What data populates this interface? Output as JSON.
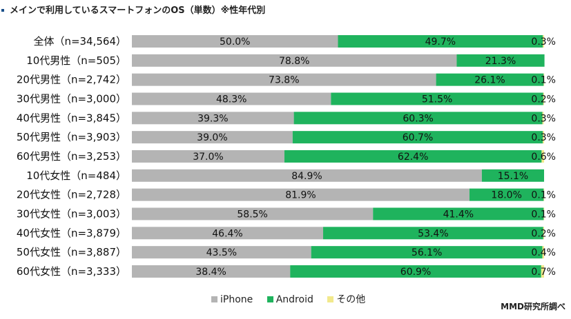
{
  "chart_data": {
    "type": "bar",
    "stacked": true,
    "orientation": "horizontal",
    "title": "メインで利用しているスマートフォンのOS（単数）※性年代別",
    "categories": [
      "全体（n=34,564）",
      "10代男性（n=505）",
      "20代男性（n=2,742）",
      "30代男性（n=3,000）",
      "40代男性（n=3,845）",
      "50代男性（n=3,903）",
      "60代男性（n=3,253）",
      "10代女性（n=484）",
      "20代女性（n=2,728）",
      "30代女性（n=3,003）",
      "40代女性（n=3,879）",
      "50代女性（n=3,887）",
      "60代女性（n=3,333）"
    ],
    "series": [
      {
        "name": "iPhone",
        "color": "#b4b4b4",
        "values": [
          50.0,
          78.8,
          73.8,
          48.3,
          39.3,
          39.0,
          37.0,
          84.9,
          81.9,
          58.5,
          46.4,
          43.5,
          38.4
        ],
        "labels": [
          "50.0%",
          "78.8%",
          "73.8%",
          "48.3%",
          "39.3%",
          "39.0%",
          "37.0%",
          "84.9%",
          "81.9%",
          "58.5%",
          "46.4%",
          "43.5%",
          "38.4%"
        ]
      },
      {
        "name": "Android",
        "color": "#1fb35d",
        "values": [
          49.7,
          21.3,
          26.1,
          51.5,
          60.3,
          60.7,
          62.4,
          15.1,
          18.0,
          41.4,
          53.4,
          56.1,
          60.9
        ],
        "labels": [
          "49.7%",
          "21.3%",
          "26.1%",
          "51.5%",
          "60.3%",
          "60.7%",
          "62.4%",
          "15.1%",
          "18.0%",
          "41.4%",
          "53.4%",
          "56.1%",
          "60.9%"
        ]
      },
      {
        "name": "その他",
        "color": "#f2e98c",
        "values": [
          0.3,
          0,
          0.1,
          0.2,
          0.3,
          0.3,
          0.6,
          0,
          0.1,
          0.1,
          0.2,
          0.4,
          0.7
        ],
        "labels": [
          "0.3%",
          "",
          "0.1%",
          "0.2%",
          "0.3%",
          "0.3%",
          "0.6%",
          "",
          "0.1%",
          "0.1%",
          "0.2%",
          "0.4%",
          "0.7%"
        ]
      }
    ],
    "xlim": [
      0,
      100
    ],
    "legend_position": "bottom"
  },
  "credit": "MMD研究所調べ"
}
